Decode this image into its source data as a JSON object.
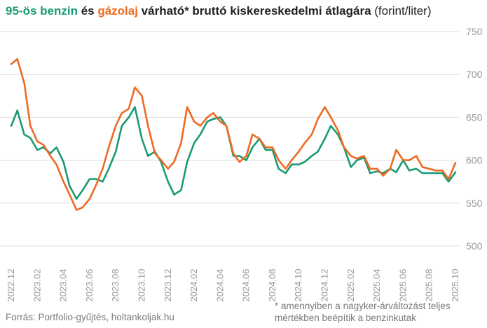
{
  "title": {
    "benzin_label": "95-ös benzin",
    "connector": " és ",
    "gazolaj_label": "gázolaj",
    "rest": " várható* bruttó kiskereskedelmi átlagára",
    "unit": " (forint/liter)"
  },
  "source": "Forrás: Portfolio-gyűjtés, holtankoljak.hu",
  "footnote_line1": "* amennyiben a nagyker-árváltozást teljes",
  "footnote_line2": "mértékben beépítik a benzinkutak",
  "colors": {
    "benzin": "#1a9a74",
    "gazolaj": "#ee6a22",
    "grid": "#dddddd",
    "axis_text": "#999999"
  },
  "chart_data": {
    "type": "line",
    "title": "95-ös benzin és gázolaj várható* bruttó kiskereskedelmi átlagára (forint/liter)",
    "xlabel": "",
    "ylabel": "",
    "ylim": [
      500,
      750
    ],
    "y_ticks": [
      "750",
      "700",
      "650",
      "600",
      "550",
      "500"
    ],
    "x_range": [
      "2022-12",
      "2025-10"
    ],
    "x_ticks": [
      "2022.12",
      "2023.02",
      "2023.04",
      "2023.06",
      "2023.08",
      "2023.10",
      "2023.12",
      "2024.02",
      "2024.04",
      "2024.06",
      "2024.08",
      "2024.10",
      "2024.12",
      "2025.02",
      "2025.04",
      "2025.06",
      "2025.08",
      "2025.10"
    ],
    "grid": true,
    "legend": "in title",
    "series": [
      {
        "name": "95-ös benzin",
        "x": [
          "2022-12",
          "2022-12-15",
          "2023-01",
          "2023-01-15",
          "2023-02",
          "2023-02-15",
          "2023-03",
          "2023-03-15",
          "2023-04",
          "2023-04-15",
          "2023-05",
          "2023-05-15",
          "2023-06",
          "2023-06-15",
          "2023-07",
          "2023-07-15",
          "2023-08",
          "2023-08-15",
          "2023-09",
          "2023-09-15",
          "2023-10",
          "2023-10-15",
          "2023-11",
          "2023-11-15",
          "2023-12",
          "2023-12-15",
          "2024-01",
          "2024-01-15",
          "2024-02",
          "2024-02-15",
          "2024-03",
          "2024-03-15",
          "2024-04",
          "2024-04-15",
          "2024-05",
          "2024-05-15",
          "2024-06",
          "2024-06-15",
          "2024-07",
          "2024-07-15",
          "2024-08",
          "2024-08-15",
          "2024-09",
          "2024-09-15",
          "2024-10",
          "2024-10-15",
          "2024-11",
          "2024-11-15",
          "2024-12",
          "2024-12-15",
          "2025-01",
          "2025-01-15",
          "2025-02",
          "2025-02-15",
          "2025-03",
          "2025-03-15",
          "2025-04",
          "2025-04-15",
          "2025-05",
          "2025-05-15",
          "2025-06",
          "2025-06-15",
          "2025-07",
          "2025-07-15",
          "2025-08",
          "2025-08-15",
          "2025-09",
          "2025-09-15",
          "2025-10"
        ],
        "values": [
          640,
          658,
          630,
          626,
          612,
          615,
          608,
          615,
          598,
          570,
          555,
          565,
          578,
          578,
          575,
          590,
          610,
          640,
          650,
          662,
          625,
          605,
          610,
          598,
          575,
          560,
          565,
          598,
          620,
          630,
          645,
          648,
          650,
          640,
          605,
          605,
          600,
          615,
          625,
          612,
          612,
          590,
          585,
          595,
          595,
          598,
          605,
          610,
          625,
          640,
          630,
          615,
          592,
          600,
          603,
          585,
          587,
          585,
          590,
          586,
          600,
          588,
          590,
          585,
          585,
          585,
          585,
          575,
          586
        ]
      },
      {
        "name": "gázolaj",
        "x": [
          "2022-12",
          "2022-12-15",
          "2023-01",
          "2023-01-15",
          "2023-02",
          "2023-02-15",
          "2023-03",
          "2023-03-15",
          "2023-04",
          "2023-04-15",
          "2023-05",
          "2023-05-15",
          "2023-06",
          "2023-06-15",
          "2023-07",
          "2023-07-15",
          "2023-08",
          "2023-08-15",
          "2023-09",
          "2023-09-15",
          "2023-10",
          "2023-10-15",
          "2023-11",
          "2023-11-15",
          "2023-12",
          "2023-12-15",
          "2024-01",
          "2024-01-15",
          "2024-02",
          "2024-02-15",
          "2024-03",
          "2024-03-15",
          "2024-04",
          "2024-04-15",
          "2024-05",
          "2024-05-15",
          "2024-06",
          "2024-06-15",
          "2024-07",
          "2024-07-15",
          "2024-08",
          "2024-08-15",
          "2024-09",
          "2024-09-15",
          "2024-10",
          "2024-10-15",
          "2024-11",
          "2024-11-15",
          "2024-12",
          "2024-12-15",
          "2025-01",
          "2025-01-15",
          "2025-02",
          "2025-02-15",
          "2025-03",
          "2025-03-15",
          "2025-04",
          "2025-04-15",
          "2025-05",
          "2025-05-15",
          "2025-06",
          "2025-06-15",
          "2025-07",
          "2025-07-15",
          "2025-08",
          "2025-08-15",
          "2025-09",
          "2025-09-15",
          "2025-10"
        ],
        "values": [
          712,
          718,
          690,
          640,
          622,
          618,
          605,
          595,
          575,
          560,
          542,
          545,
          555,
          570,
          590,
          615,
          640,
          655,
          660,
          685,
          675,
          640,
          608,
          600,
          590,
          598,
          620,
          662,
          645,
          640,
          650,
          655,
          645,
          640,
          608,
          598,
          605,
          630,
          625,
          615,
          615,
          600,
          590,
          600,
          610,
          620,
          630,
          648,
          662,
          650,
          635,
          615,
          605,
          602,
          605,
          590,
          590,
          582,
          590,
          612,
          600,
          600,
          605,
          592,
          590,
          588,
          588,
          578,
          597
        ]
      }
    ]
  }
}
